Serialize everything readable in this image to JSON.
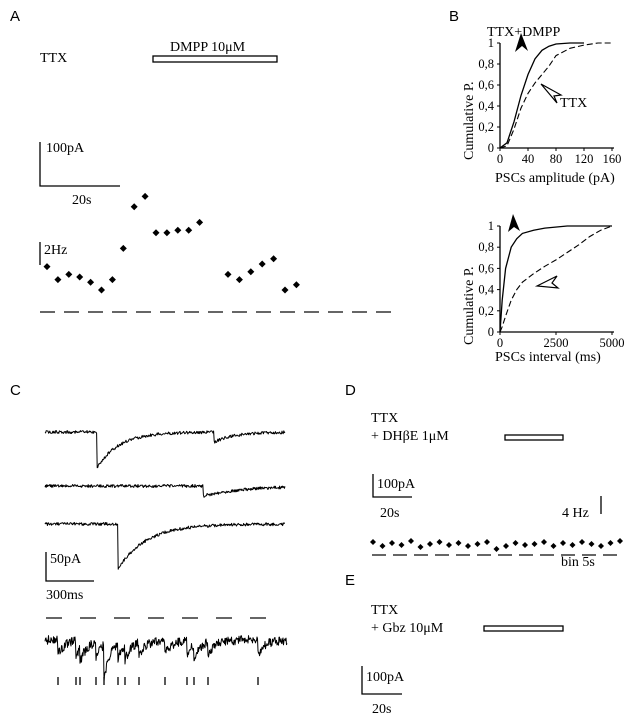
{
  "panels": {
    "A": {
      "letter": "A",
      "condition": "TTX",
      "drug_bar": "DMPP 10μM",
      "scale_current": "100pA",
      "scale_time": "20s",
      "rate_scale": "2Hz",
      "rate_points": [
        0.45,
        0.2,
        0.3,
        0.25,
        0.15,
        0,
        0.2,
        0.8,
        1.6,
        1.8,
        1.1,
        1.1,
        1.15,
        1.15,
        1.3,
        0.3,
        0.2,
        0.35,
        0.5,
        0.6,
        0,
        0.1
      ]
    },
    "B": {
      "letter": "B",
      "top": {
        "label_drug": "TTX+DMPP",
        "label_ctrl": "TTX",
        "ylabel": "Cumulative P.",
        "xlabel": "PSCs amplitude (pA)",
        "yticks": [
          "0",
          "0,2",
          "0,4",
          "0,6",
          "0,8",
          "1"
        ],
        "xticks": [
          "0",
          "40",
          "80",
          "120",
          "160"
        ]
      },
      "bottom": {
        "ylabel": "Cumulative P.",
        "xlabel": "PSCs interval (ms)",
        "yticks": [
          "0",
          "0,2",
          "0,4",
          "0,6",
          "0,8",
          "1"
        ],
        "xticks": [
          "0",
          "2500",
          "5000"
        ]
      }
    },
    "C": {
      "letter": "C",
      "scale_current": "50pA",
      "scale_time": "300ms"
    },
    "D": {
      "letter": "D",
      "condition_line1": "TTX",
      "condition_line2": "+ DHβE 1μM",
      "scale_current": "100pA",
      "scale_time": "20s",
      "rate_scale": "4 Hz",
      "bin": "bin 5s"
    },
    "E": {
      "letter": "E",
      "condition_line1": "TTX",
      "condition_line2": "+ Gbz 10μM",
      "scale_current": "100pA",
      "scale_time": "20s"
    }
  },
  "chart_data": [
    {
      "type": "line",
      "title": "",
      "xlabel": "PSCs amplitude (pA)",
      "ylabel": "Cumulative P.",
      "xlim": [
        0,
        160
      ],
      "ylim": [
        0,
        1
      ],
      "series": [
        {
          "name": "TTX+DMPP",
          "x": [
            0,
            10,
            20,
            30,
            40,
            50,
            60,
            70,
            80,
            100,
            120
          ],
          "y": [
            0,
            0.05,
            0.25,
            0.5,
            0.7,
            0.85,
            0.93,
            0.97,
            0.99,
            1,
            1
          ]
        },
        {
          "name": "TTX",
          "x": [
            0,
            10,
            20,
            30,
            40,
            50,
            60,
            70,
            80,
            100,
            120,
            140,
            160
          ],
          "y": [
            0,
            0.02,
            0.18,
            0.38,
            0.52,
            0.62,
            0.7,
            0.78,
            0.88,
            0.95,
            0.98,
            1,
            1
          ]
        }
      ]
    },
    {
      "type": "line",
      "title": "",
      "xlabel": "PSCs interval (ms)",
      "ylabel": "Cumulative P.",
      "xlim": [
        0,
        5000
      ],
      "ylim": [
        0,
        1
      ],
      "series": [
        {
          "name": "TTX+DMPP",
          "x": [
            0,
            100,
            250,
            500,
            750,
            1000,
            1500,
            2000,
            3000,
            5000
          ],
          "y": [
            0,
            0.3,
            0.6,
            0.8,
            0.88,
            0.93,
            0.96,
            0.98,
            1,
            1
          ]
        },
        {
          "name": "TTX",
          "x": [
            0,
            100,
            250,
            500,
            750,
            1000,
            1500,
            2000,
            2500,
            3000,
            3500,
            4000,
            4500,
            5000
          ],
          "y": [
            0,
            0.05,
            0.15,
            0.3,
            0.4,
            0.47,
            0.55,
            0.62,
            0.68,
            0.75,
            0.82,
            0.9,
            0.96,
            1
          ]
        }
      ]
    }
  ]
}
